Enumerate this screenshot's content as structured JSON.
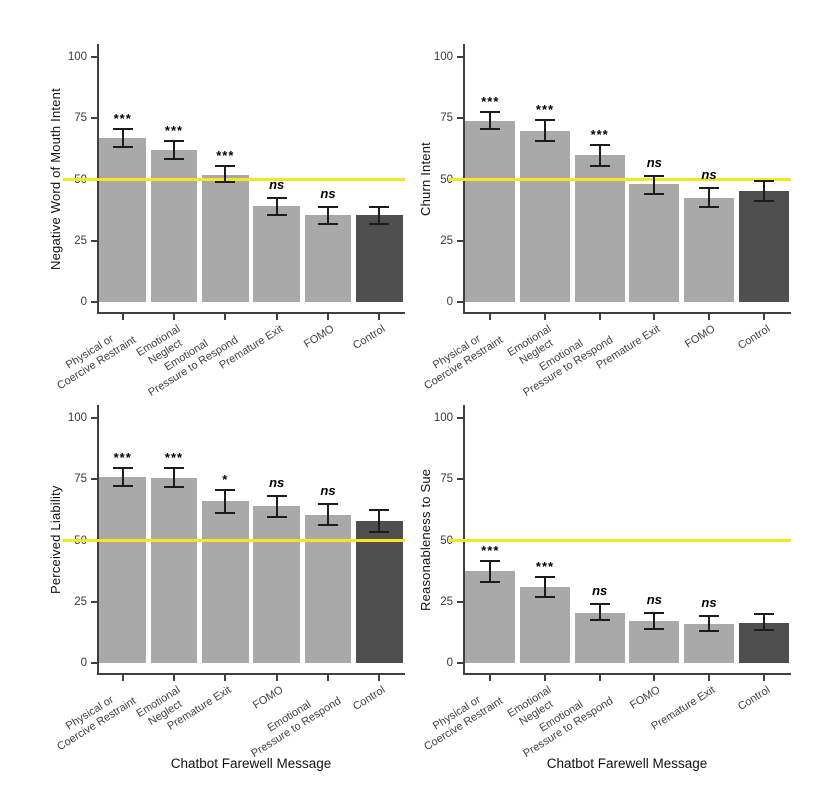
{
  "figure": {
    "x_axis_title": "Chatbot Farewell Message",
    "colors": {
      "bar": "#a9a9a9",
      "control_bar": "#4f4f4f",
      "reference_line": "#f7e51f",
      "axis": "#3f3f3f",
      "error_bar": "#1c1c1c",
      "background": "#ffffff"
    }
  },
  "chart_data": [
    {
      "type": "bar",
      "position": "top-left",
      "title": "",
      "ylabel": "Negative Word of Mouth Intent",
      "xlabel": "",
      "ylim": [
        0,
        100
      ],
      "yticks": [
        0,
        25,
        50,
        75,
        100
      ],
      "grid": "off",
      "legend": "none",
      "reference_line_y": 50,
      "categories": [
        "Physical or\nCoercive Restraint",
        "Emotional\nNeglect",
        "Emotional\nPressure to Respond",
        "Premature Exit",
        "FOMO",
        "Control"
      ],
      "values": [
        67,
        62,
        52,
        39,
        35.5,
        35.5
      ],
      "error_low": [
        63,
        58,
        48.5,
        35,
        31.5,
        31.5
      ],
      "error_high": [
        71,
        66,
        56,
        43,
        39,
        39
      ],
      "significance": [
        "***",
        "***",
        "***",
        "ns",
        "ns",
        ""
      ],
      "control_index": 5
    },
    {
      "type": "bar",
      "position": "top-right",
      "title": "",
      "ylabel": "Churn Intent",
      "xlabel": "",
      "ylim": [
        0,
        100
      ],
      "yticks": [
        0,
        25,
        50,
        75,
        100
      ],
      "grid": "off",
      "legend": "none",
      "reference_line_y": 50,
      "categories": [
        "Physical or\nCoercive Restraint",
        "Emotional\nNeglect",
        "Emotional\nPressure to Respond",
        "Premature Exit",
        "FOMO",
        "Control"
      ],
      "values": [
        74,
        70,
        60,
        48,
        42.5,
        45.5
      ],
      "error_low": [
        70,
        65.5,
        55,
        43.5,
        38.5,
        41
      ],
      "error_high": [
        78,
        74.5,
        64.5,
        52,
        47,
        50
      ],
      "significance": [
        "***",
        "***",
        "***",
        "ns",
        "ns",
        ""
      ],
      "control_index": 5
    },
    {
      "type": "bar",
      "position": "bottom-left",
      "title": "",
      "ylabel": "Perceived Liability",
      "xlabel": "Chatbot Farewell Message",
      "ylim": [
        0,
        100
      ],
      "yticks": [
        0,
        25,
        50,
        75,
        100
      ],
      "grid": "off",
      "legend": "none",
      "reference_line_y": 50,
      "categories": [
        "Physical or\nCoercive Restraint",
        "Emotional\nNeglect",
        "Premature Exit",
        "FOMO",
        "Emotional\nPressure to Respond",
        "Control"
      ],
      "values": [
        76,
        75.5,
        66,
        64,
        60.5,
        58
      ],
      "error_low": [
        72,
        71.5,
        61,
        59,
        56,
        53
      ],
      "error_high": [
        80,
        80,
        71,
        68.5,
        65.5,
        63
      ],
      "significance": [
        "***",
        "***",
        "*",
        "ns",
        "ns",
        ""
      ],
      "control_index": 5
    },
    {
      "type": "bar",
      "position": "bottom-right",
      "title": "",
      "ylabel": "Reasonableness to Sue",
      "xlabel": "Chatbot Farewell Message",
      "ylim": [
        0,
        100
      ],
      "yticks": [
        0,
        25,
        50,
        75,
        100
      ],
      "grid": "off",
      "legend": "none",
      "reference_line_y": 50,
      "categories": [
        "Physical or\nCoercive Restraint",
        "Emotional\nNeglect",
        "Emotional\nPressure to Respond",
        "FOMO",
        "Premature Exit",
        "Control"
      ],
      "values": [
        37.5,
        31,
        20.5,
        17,
        16,
        16.5
      ],
      "error_low": [
        32.5,
        26.5,
        17,
        13.5,
        12.5,
        13
      ],
      "error_high": [
        42,
        35.5,
        24.5,
        21,
        19.5,
        20.5
      ],
      "significance": [
        "***",
        "***",
        "ns",
        "ns",
        "ns",
        ""
      ],
      "control_index": 5
    }
  ]
}
